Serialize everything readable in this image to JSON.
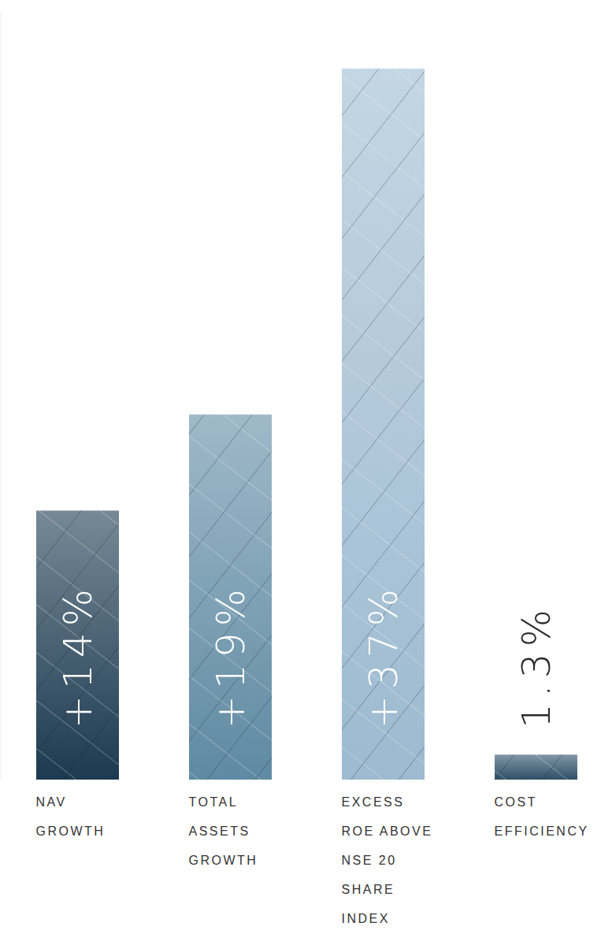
{
  "chart_data": {
    "type": "bar",
    "categories": [
      "NAV GROWTH",
      "TOTAL ASSETS GROWTH",
      "EXCESS ROE ABOVE NSE 20 SHARE INDEX",
      "COST EFFICIENCY"
    ],
    "values": [
      14,
      19,
      37,
      1.3
    ],
    "value_labels": [
      "+14%",
      "+19%",
      "+37%",
      "1.3%"
    ],
    "colors": [
      "#1c3a50",
      "#5f8aa3",
      "#9dbad0",
      "#2e5068"
    ],
    "ylim": [
      0,
      40
    ],
    "yticks": [
      0,
      40
    ],
    "grid": false,
    "data_labels": true,
    "tick_labels": "x"
  }
}
